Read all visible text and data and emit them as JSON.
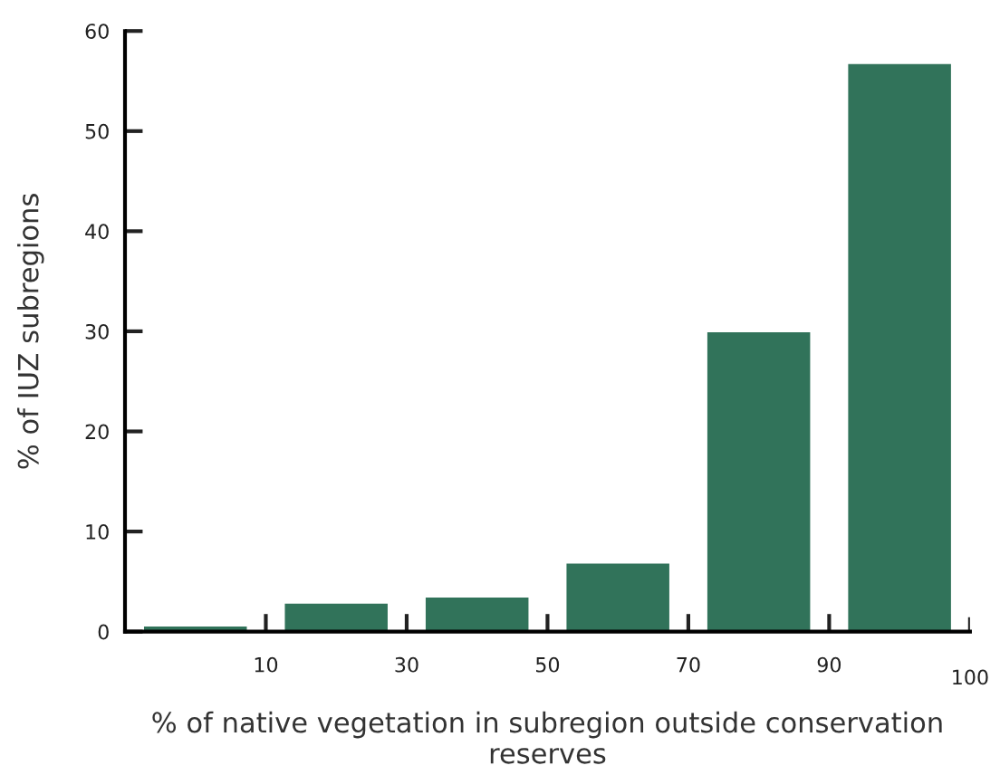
{
  "chart_data": {
    "type": "bar",
    "xlabel": "% of native vegetation in subregion outside conservation reserves",
    "ylabel": "% of IUZ subregions",
    "x": [
      0,
      20,
      40,
      60,
      80,
      100
    ],
    "values": [
      0.5,
      2.8,
      3.4,
      6.8,
      29.9,
      56.7
    ],
    "color": "#31735a",
    "xlim": [
      -10,
      110
    ],
    "xticks": [
      10,
      30,
      50,
      70,
      90
    ],
    "ylim": [
      0,
      60
    ],
    "yticks": [
      0,
      10,
      20,
      30,
      40,
      50,
      60
    ],
    "annotations": [
      "100"
    ],
    "grid": false,
    "legend": false
  }
}
